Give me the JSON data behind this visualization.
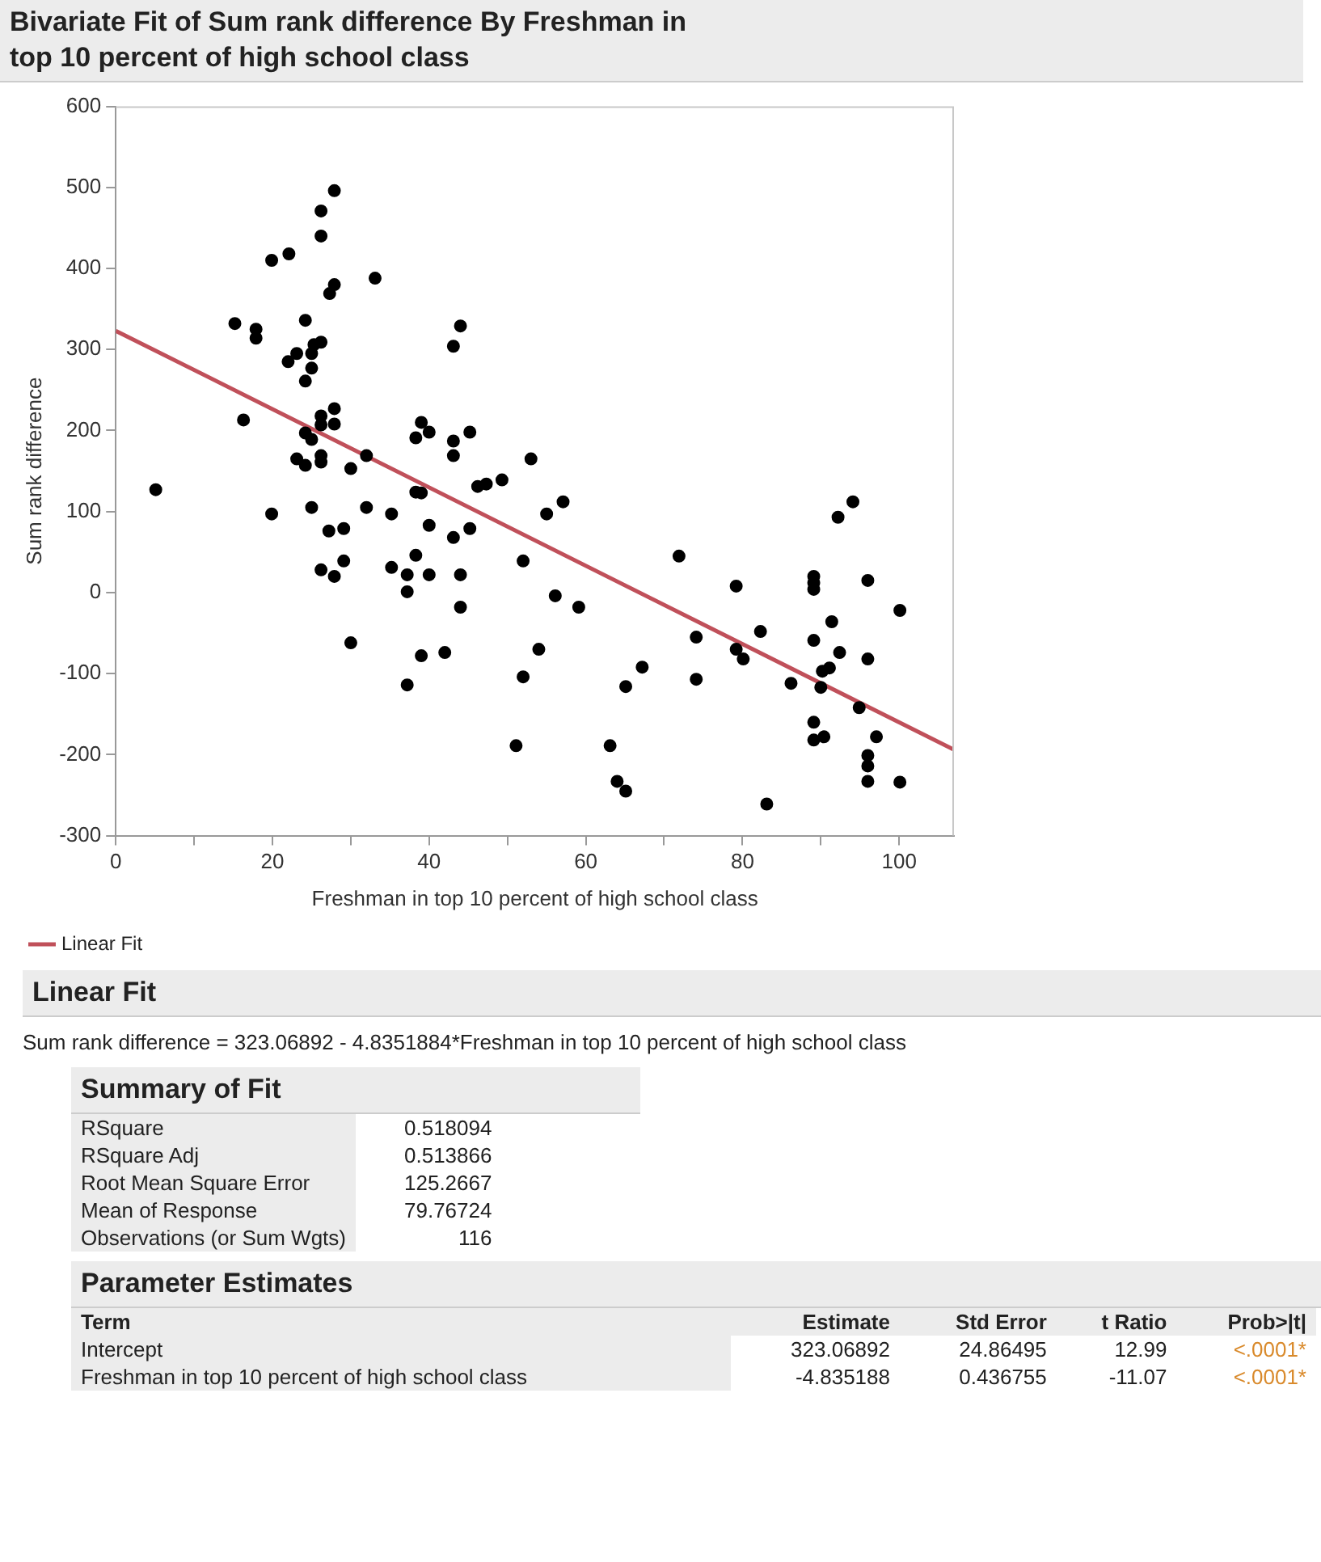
{
  "chart_data": {
    "type": "scatter",
    "title": "Bivariate Fit of Sum rank difference By Freshman in top 10 percent of high school class",
    "xlabel": "Freshman in top 10 percent of high school class",
    "ylabel": "Sum rank difference",
    "xlim": [
      0,
      107
    ],
    "ylim": [
      -300,
      600
    ],
    "xticks": [
      0,
      {
        "value": 10,
        "label": null
      },
      20,
      {
        "value": 30,
        "label": null
      },
      40,
      {
        "value": 50,
        "label": null
      },
      60,
      {
        "value": 70,
        "label": null
      },
      80,
      {
        "value": 90,
        "label": null
      },
      100
    ],
    "yticks": [
      -300,
      -200,
      -100,
      0,
      100,
      200,
      300,
      400,
      500,
      600
    ],
    "grid": false,
    "legend": "bottom left",
    "series": [
      {
        "color": "#000000",
        "marker": "circle",
        "x": [
          5.1,
          19.9,
          15.2,
          16.3,
          17.9,
          17.9,
          19.9,
          22.1,
          22,
          23.1,
          24.2,
          24.2,
          25,
          25,
          25.3,
          26.2,
          26.2,
          26.2,
          27.9,
          27.9,
          27.3,
          24.2,
          25,
          23.1,
          24.2,
          26.2,
          26.2,
          27.9,
          27.9,
          26.2,
          26.2,
          25,
          27.2,
          29.1,
          26.2,
          27.9,
          29.1,
          30,
          30,
          33.1,
          32,
          32,
          35.2,
          35.2,
          37.2,
          37.2,
          38.3,
          40,
          40,
          37.2,
          39,
          42,
          38.3,
          39,
          40,
          38.3,
          39,
          43.1,
          44,
          43.1,
          43.1,
          45.2,
          43.1,
          45.2,
          44,
          44,
          46.2,
          47.3,
          49.3,
          52,
          52,
          51.1,
          53,
          55,
          57.1,
          56.1,
          59.1,
          54,
          71.9,
          74.1,
          74.1,
          67.2,
          65.1,
          63.1,
          64,
          65.1,
          79.2,
          79.2,
          80.1,
          82.3,
          83.1,
          86.2,
          89.1,
          89.1,
          89.1,
          89.1,
          91.4,
          92.4,
          90.2,
          91.1,
          90,
          89.1,
          89.1,
          90.4,
          94.9,
          92.2,
          94.1,
          96,
          96,
          97.1,
          96,
          96,
          96,
          100.1,
          100.1
        ],
        "values": [
          127,
          97,
          332,
          213,
          325,
          314,
          410,
          418,
          285,
          295,
          336,
          261,
          277,
          295,
          306,
          309,
          440,
          471,
          496,
          380,
          369,
          197,
          189,
          165,
          157,
          218,
          207,
          227,
          208,
          169,
          161,
          105,
          76,
          79,
          28,
          20,
          39,
          153,
          -62,
          388,
          169,
          105,
          97,
          31,
          22,
          1,
          46,
          83,
          22,
          -114,
          -78,
          -74,
          191,
          210,
          198,
          124,
          123,
          304,
          329,
          187,
          169,
          198,
          68,
          79,
          22,
          -18,
          131,
          134,
          139,
          39,
          -104,
          -189,
          165,
          97,
          112,
          -4,
          -18,
          -70,
          45,
          -55,
          -107,
          -92,
          -116,
          -189,
          -233,
          -245,
          8,
          -70,
          -82,
          -48,
          -261,
          -112,
          20,
          12,
          4,
          -59,
          -36,
          -74,
          -97,
          -93,
          -117,
          -160,
          -182,
          -178,
          -142,
          93,
          112,
          15,
          -82,
          -178,
          -201,
          -214,
          -233,
          -22,
          -234
        ]
      },
      {
        "type": "line",
        "name": "Linear Fit",
        "color": "#c0505a",
        "marker": "none",
        "x": [
          0,
          107
        ],
        "values": [
          323,
          -194
        ]
      }
    ],
    "annotations": [
      "Linear Fit",
      "Sum rank difference = 323.06892 - 4.8351884*Freshman in top 10 percent of high school class",
      "Summary of Fit",
      "RSquare",
      "0.518094",
      "RSquare Adj",
      "0.513866",
      "Root Mean Square Error",
      "125.2667",
      "Mean of Response",
      "79.76724",
      "Observations (or Sum Wgts)",
      "116",
      "Parameter Estimates",
      "Term",
      "Estimate",
      "Std Error",
      "t Ratio",
      "Prob>|t|",
      "Intercept",
      "323.06892",
      "24.86495",
      "12.99",
      "<.0001*",
      "Freshman in top 10 percent of high school class",
      "-4.835188",
      "0.436755",
      "-11.07",
      "<.0001*"
    ]
  }
}
